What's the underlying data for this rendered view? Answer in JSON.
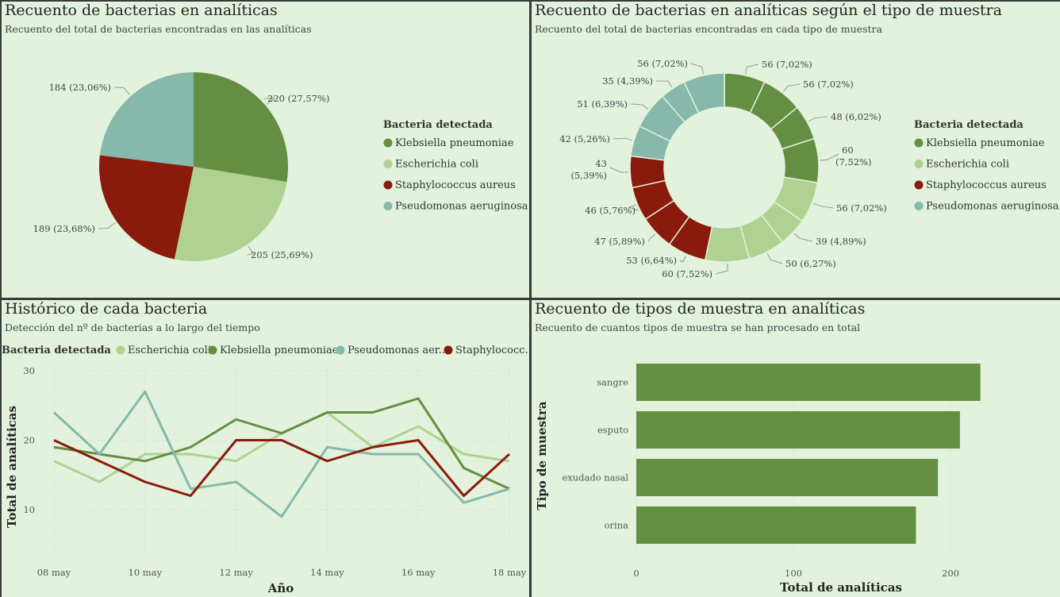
{
  "colors": {
    "klebsiella": "#648f42",
    "escherichia": "#afd192",
    "staphylococcus": "#8a1a0c",
    "pseudomonas": "#86b8ab",
    "background": "#e2f2dc"
  },
  "panels": {
    "pie": {
      "title": "Recuento de bacterias en analíticas",
      "subtitle": "Recuento del total de bacterias encontradas en las analíticas"
    },
    "donut": {
      "title": "Recuento de bacterias en analíticas según el tipo de muestra",
      "subtitle": "Recuento del total de bacterias encontradas en cada tipo de muestra"
    },
    "line": {
      "title": "Histórico de cada bacteria",
      "subtitle": "Detección del nº de bacterias a lo largo del tiempo"
    },
    "bar": {
      "title": "Recuento de tipos de muestra en analíticas",
      "subtitle": "Recuento de cuantos tipos de muestra se han procesado en total"
    }
  },
  "chart_data": [
    {
      "type": "pie",
      "legend_title": "Bacteria detectada",
      "legend_position": "right",
      "categories": [
        "Klebsiella pneumoniae",
        "Escherichia coli",
        "Staphylococcus aureus",
        "Pseudomonas aeruginosa"
      ],
      "values": [
        220,
        205,
        189,
        184
      ],
      "labels": [
        "220 (27,57%)",
        "205 (25,69%)",
        "189 (23,68%)",
        "184 (23,06%)"
      ]
    },
    {
      "type": "pie",
      "legend_title": "Bacteria detectada",
      "legend_position": "right",
      "legend": [
        "Klebsiella pneumoniae",
        "Escherichia coli",
        "Staphylococcus aureus",
        "Pseudomonas aeruginosa"
      ],
      "slices": [
        {
          "bacteria": "Klebsiella pneumoniae",
          "value": 56,
          "label": "56 (7,02%)"
        },
        {
          "bacteria": "Klebsiella pneumoniae",
          "value": 56,
          "label": "56 (7,02%)"
        },
        {
          "bacteria": "Klebsiella pneumoniae",
          "value": 48,
          "label": "48 (6,02%)"
        },
        {
          "bacteria": "Klebsiella pneumoniae",
          "value": 60,
          "label": "60 (7,52%)"
        },
        {
          "bacteria": "Escherichia coli",
          "value": 56,
          "label": "56 (7,02%)"
        },
        {
          "bacteria": "Escherichia coli",
          "value": 39,
          "label": "39 (4,89%)"
        },
        {
          "bacteria": "Escherichia coli",
          "value": 50,
          "label": "50 (6,27%)"
        },
        {
          "bacteria": "Escherichia coli",
          "value": 60,
          "label": "60 (7,52%)"
        },
        {
          "bacteria": "Staphylococcus aureus",
          "value": 53,
          "label": "53 (6,64%)"
        },
        {
          "bacteria": "Staphylococcus aureus",
          "value": 47,
          "label": "47 (5,89%)"
        },
        {
          "bacteria": "Staphylococcus aureus",
          "value": 46,
          "label": "46 (5,76%)"
        },
        {
          "bacteria": "Staphylococcus aureus",
          "value": 43,
          "label": "43 (5,39%)"
        },
        {
          "bacteria": "Pseudomonas aeruginosa",
          "value": 42,
          "label": "42 (5,26%)"
        },
        {
          "bacteria": "Pseudomonas aeruginosa",
          "value": 51,
          "label": "51 (6,39%)"
        },
        {
          "bacteria": "Pseudomonas aeruginosa",
          "value": 35,
          "label": "35 (4,39%)"
        },
        {
          "bacteria": "Pseudomonas aeruginosa",
          "value": 56,
          "label": "56 (7,02%)"
        }
      ]
    },
    {
      "type": "line",
      "legend_title": "Bacteria detectada",
      "legend_position": "top",
      "x": [
        "08 may",
        "09 may",
        "10 may",
        "11 may",
        "12 may",
        "13 may",
        "14 may",
        "15 may",
        "16 may",
        "17 may",
        "18 may"
      ],
      "x_tick_labels": [
        "08 may",
        "10 may",
        "12 may",
        "14 may",
        "16 may",
        "18 may"
      ],
      "xlabel": "Año",
      "ylabel": "Total de analíticas",
      "yticks": [
        10,
        20,
        30
      ],
      "ylim": [
        6,
        30
      ],
      "grid": true,
      "series": [
        {
          "name": "Escherichia coli",
          "legend_label": "Escherichia coli",
          "values": [
            17,
            14,
            18,
            18,
            17,
            21,
            24,
            19,
            22,
            18,
            17
          ]
        },
        {
          "name": "Klebsiella pneumoniae",
          "legend_label": "Klebsiella pneumoniae",
          "values": [
            19,
            18,
            17,
            19,
            23,
            21,
            24,
            24,
            26,
            16,
            13
          ]
        },
        {
          "name": "Pseudomonas aeruginosa",
          "legend_label": "Pseudomonas aer...",
          "values": [
            24,
            18,
            27,
            13,
            14,
            9,
            19,
            18,
            18,
            11,
            13
          ]
        },
        {
          "name": "Staphylococcus aureus",
          "legend_label": "Staphylococc...",
          "values": [
            20,
            17,
            14,
            12,
            20,
            20,
            17,
            19,
            20,
            12,
            18
          ]
        }
      ]
    },
    {
      "type": "bar",
      "orientation": "horizontal",
      "categories": [
        "sangre",
        "esputo",
        "exudado nasal",
        "orina"
      ],
      "values": [
        219,
        206,
        192,
        178
      ],
      "xlabel": "Total de analíticas",
      "ylabel": "Tipo de muestra",
      "xticks": [
        0,
        100,
        200
      ],
      "xlim": [
        0,
        250
      ],
      "grid": true
    }
  ]
}
